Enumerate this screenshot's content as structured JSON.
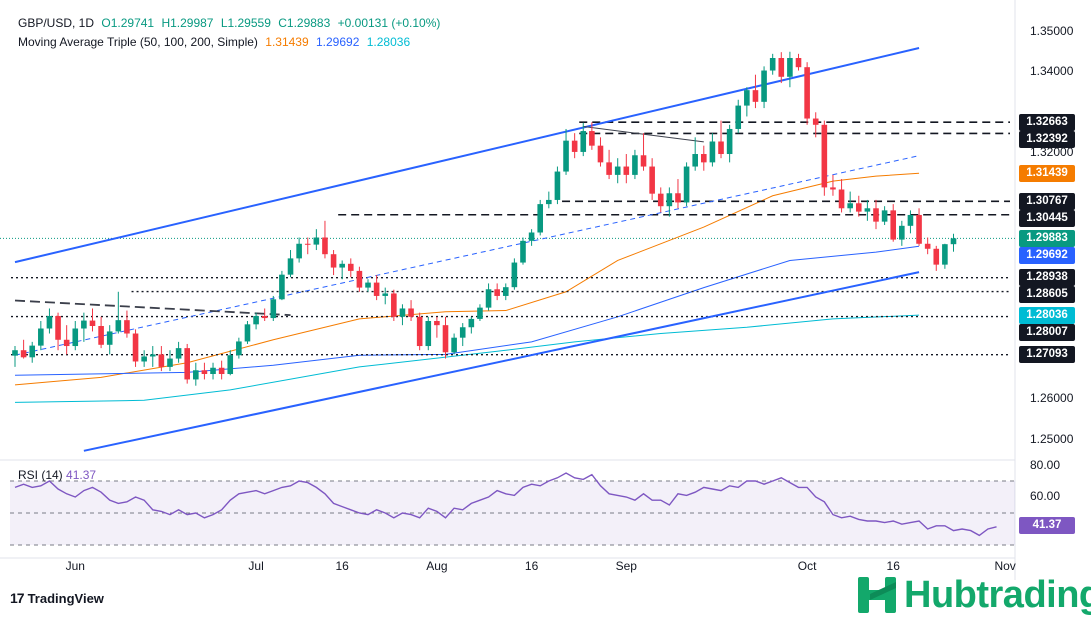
{
  "header": {
    "symbol": "GBP/USD, 1D",
    "open": "O1.29741",
    "high": "H1.29987",
    "low": "L1.29559",
    "close": "C1.29883",
    "change": "+0.00131 (+0.10%)",
    "indicator_name": "Moving Average Triple (50, 100, 200, Simple)",
    "ma50": "1.31439",
    "ma100": "1.29692",
    "ma200": "1.28036"
  },
  "rsi": {
    "name": "RSI (14)",
    "value": "41.37",
    "axis": [
      "80.00",
      "60.00"
    ]
  },
  "price_axis": [
    "1.35000",
    "1.34000",
    "1.32000",
    "1.26000",
    "1.25000"
  ],
  "price_labels": [
    {
      "text": "1.32663",
      "style": "dark",
      "price": 1.32663
    },
    {
      "text": "1.32392",
      "style": "dark",
      "price": 1.32392
    },
    {
      "text": "1.31439",
      "style": "orange",
      "price": 1.31439
    },
    {
      "text": "1.30767",
      "style": "dark",
      "price": 1.30767
    },
    {
      "text": "1.30445",
      "style": "dark",
      "price": 1.30445
    },
    {
      "text": "1.29883",
      "style": "green",
      "price": 1.29883
    },
    {
      "text": "1.29692",
      "style": "blue",
      "price": 1.29692
    },
    {
      "text": "1.28938",
      "style": "dark",
      "price": 1.28938
    },
    {
      "text": "1.28605",
      "style": "dark",
      "price": 1.28605
    },
    {
      "text": "1.28036",
      "style": "teal",
      "price": 1.28036
    },
    {
      "text": "1.28007",
      "style": "dark",
      "price": 1.28007
    },
    {
      "text": "1.27093",
      "style": "dark",
      "price": 1.27093
    }
  ],
  "x_axis": [
    {
      "label": "Jun",
      "bar": 7
    },
    {
      "label": "Jul",
      "bar": 28
    },
    {
      "label": "16",
      "bar": 38
    },
    {
      "label": "Aug",
      "bar": 49
    },
    {
      "label": "16",
      "bar": 60
    },
    {
      "label": "Sep",
      "bar": 71
    },
    {
      "label": "Oct",
      "bar": 92
    },
    {
      "label": "16",
      "bar": 102
    },
    {
      "label": "Nov",
      "bar": 115
    }
  ],
  "branding": {
    "tradingview": "TradingView",
    "broker": "Hubtrading"
  },
  "colors": {
    "up": "#089981",
    "down": "#f23645",
    "ma50": "#f57c00",
    "ma100": "#2962ff",
    "ma200": "#00bcd4",
    "channel": "#2962ff",
    "rsi": "#7e57c2",
    "level": "#131722"
  },
  "chart_data": {
    "type": "candlestick",
    "title": "GBP/USD, 1D",
    "y_range": [
      1.2457,
      1.3535
    ],
    "horizontal_levels": [
      1.32663,
      1.32392,
      1.30767,
      1.30445,
      1.28938,
      1.28605,
      1.28007,
      1.27093
    ],
    "channel_upper": [
      [
        0,
        1.2931
      ],
      [
        105,
        1.3444
      ]
    ],
    "channel_lower": [
      [
        8,
        1.2479
      ],
      [
        105,
        1.2907
      ]
    ],
    "channel_mid_dashed": [
      [
        0,
        1.2708
      ],
      [
        105,
        1.3186
      ]
    ],
    "trend_dashed": [
      [
        0,
        1.2839
      ],
      [
        32,
        1.2804
      ]
    ],
    "sep_trendline": [
      [
        66,
        1.3256
      ],
      [
        80,
        1.3219
      ]
    ],
    "ma50": [
      [
        0,
        1.2637
      ],
      [
        10,
        1.2655
      ],
      [
        20,
        1.269
      ],
      [
        30,
        1.2745
      ],
      [
        40,
        1.2795
      ],
      [
        50,
        1.2812
      ],
      [
        57,
        1.2815
      ],
      [
        64,
        1.286
      ],
      [
        70,
        1.2935
      ],
      [
        80,
        1.3015
      ],
      [
        88,
        1.309
      ],
      [
        95,
        1.3125
      ],
      [
        100,
        1.3137
      ],
      [
        105,
        1.3144
      ]
    ],
    "ma100": [
      [
        0,
        1.266
      ],
      [
        20,
        1.2667
      ],
      [
        30,
        1.2684
      ],
      [
        40,
        1.2708
      ],
      [
        50,
        1.271
      ],
      [
        60,
        1.274
      ],
      [
        70,
        1.28
      ],
      [
        80,
        1.287
      ],
      [
        90,
        1.2935
      ],
      [
        100,
        1.2955
      ],
      [
        105,
        1.2969
      ]
    ],
    "ma200": [
      [
        0,
        1.2595
      ],
      [
        15,
        1.26
      ],
      [
        25,
        1.2625
      ],
      [
        40,
        1.268
      ],
      [
        55,
        1.2715
      ],
      [
        65,
        1.274
      ],
      [
        75,
        1.276
      ],
      [
        85,
        1.2775
      ],
      [
        95,
        1.2795
      ],
      [
        105,
        1.2804
      ]
    ],
    "candles": [
      [
        1.2707,
        1.273,
        1.268,
        1.272
      ],
      [
        1.272,
        1.2745,
        1.27,
        1.2703
      ],
      [
        1.2703,
        1.274,
        1.269,
        1.2731
      ],
      [
        1.2731,
        1.279,
        1.272,
        1.2772
      ],
      [
        1.2772,
        1.282,
        1.276,
        1.2802
      ],
      [
        1.2802,
        1.281,
        1.272,
        1.2745
      ],
      [
        1.2745,
        1.278,
        1.271,
        1.273
      ],
      [
        1.273,
        1.279,
        1.272,
        1.2772
      ],
      [
        1.2772,
        1.281,
        1.274,
        1.2791
      ],
      [
        1.2791,
        1.282,
        1.2765,
        1.2778
      ],
      [
        1.2778,
        1.28,
        1.2725,
        1.2733
      ],
      [
        1.2733,
        1.278,
        1.271,
        1.2765
      ],
      [
        1.2765,
        1.286,
        1.276,
        1.2792
      ],
      [
        1.2792,
        1.2815,
        1.275,
        1.276
      ],
      [
        1.276,
        1.277,
        1.268,
        1.2693
      ],
      [
        1.2693,
        1.272,
        1.268,
        1.2705
      ],
      [
        1.2705,
        1.273,
        1.268,
        1.271
      ],
      [
        1.271,
        1.273,
        1.267,
        1.268
      ],
      [
        1.268,
        1.272,
        1.267,
        1.27
      ],
      [
        1.27,
        1.274,
        1.269,
        1.2725
      ],
      [
        1.2725,
        1.2735,
        1.264,
        1.265
      ],
      [
        1.265,
        1.269,
        1.2635,
        1.2672
      ],
      [
        1.2672,
        1.269,
        1.265,
        1.2663
      ],
      [
        1.2663,
        1.269,
        1.265,
        1.2678
      ],
      [
        1.2678,
        1.2695,
        1.265,
        1.2663
      ],
      [
        1.2663,
        1.272,
        1.266,
        1.2708
      ],
      [
        1.2708,
        1.275,
        1.27,
        1.2741
      ],
      [
        1.2741,
        1.279,
        1.2735,
        1.2782
      ],
      [
        1.2782,
        1.281,
        1.277,
        1.2802
      ],
      [
        1.2802,
        1.282,
        1.279,
        1.2797
      ],
      [
        1.2797,
        1.285,
        1.279,
        1.2842
      ],
      [
        1.2842,
        1.291,
        1.284,
        1.2901
      ],
      [
        1.2901,
        1.296,
        1.2895,
        1.294
      ],
      [
        1.294,
        1.299,
        1.293,
        1.2975
      ],
      [
        1.2975,
        1.299,
        1.295,
        1.2973
      ],
      [
        1.2973,
        1.301,
        1.296,
        1.299
      ],
      [
        1.299,
        1.303,
        1.294,
        1.295
      ],
      [
        1.295,
        1.296,
        1.29,
        1.2918
      ],
      [
        1.2918,
        1.2935,
        1.289,
        1.2927
      ],
      [
        1.2927,
        1.294,
        1.2895,
        1.291
      ],
      [
        1.291,
        1.292,
        1.286,
        1.287
      ],
      [
        1.287,
        1.289,
        1.286,
        1.2882
      ],
      [
        1.2882,
        1.29,
        1.284,
        1.285
      ],
      [
        1.285,
        1.287,
        1.283,
        1.2856
      ],
      [
        1.2856,
        1.2865,
        1.279,
        1.28
      ],
      [
        1.28,
        1.283,
        1.278,
        1.282
      ],
      [
        1.282,
        1.284,
        1.279,
        1.28
      ],
      [
        1.28,
        1.281,
        1.272,
        1.273
      ],
      [
        1.273,
        1.28,
        1.272,
        1.279
      ],
      [
        1.279,
        1.28,
        1.275,
        1.278
      ],
      [
        1.278,
        1.28,
        1.27,
        1.2715
      ],
      [
        1.2715,
        1.276,
        1.271,
        1.275
      ],
      [
        1.275,
        1.2785,
        1.273,
        1.2775
      ],
      [
        1.2775,
        1.28,
        1.276,
        1.2795
      ],
      [
        1.2795,
        1.283,
        1.279,
        1.2822
      ],
      [
        1.2822,
        1.288,
        1.2815,
        1.2866
      ],
      [
        1.2866,
        1.288,
        1.284,
        1.285
      ],
      [
        1.285,
        1.288,
        1.284,
        1.2871
      ],
      [
        1.2871,
        1.294,
        1.2865,
        1.293
      ],
      [
        1.293,
        1.299,
        1.2925,
        1.2982
      ],
      [
        1.2982,
        1.301,
        1.297,
        1.3002
      ],
      [
        1.3002,
        1.308,
        1.2995,
        1.307
      ],
      [
        1.307,
        1.31,
        1.306,
        1.308
      ],
      [
        1.308,
        1.316,
        1.307,
        1.3148
      ],
      [
        1.3148,
        1.325,
        1.314,
        1.3222
      ],
      [
        1.3222,
        1.324,
        1.318,
        1.3195
      ],
      [
        1.3195,
        1.3265,
        1.3185,
        1.3245
      ],
      [
        1.3245,
        1.3266,
        1.32,
        1.321
      ],
      [
        1.321,
        1.323,
        1.316,
        1.317
      ],
      [
        1.317,
        1.32,
        1.313,
        1.314
      ],
      [
        1.314,
        1.318,
        1.312,
        1.316
      ],
      [
        1.316,
        1.319,
        1.312,
        1.314
      ],
      [
        1.314,
        1.32,
        1.313,
        1.3187
      ],
      [
        1.3187,
        1.324,
        1.315,
        1.316
      ],
      [
        1.316,
        1.318,
        1.308,
        1.3095
      ],
      [
        1.3095,
        1.311,
        1.305,
        1.3065
      ],
      [
        1.3065,
        1.311,
        1.304,
        1.3096
      ],
      [
        1.3096,
        1.313,
        1.306,
        1.3074
      ],
      [
        1.3074,
        1.317,
        1.3065,
        1.316
      ],
      [
        1.316,
        1.323,
        1.315,
        1.319
      ],
      [
        1.319,
        1.321,
        1.315,
        1.317
      ],
      [
        1.317,
        1.324,
        1.316,
        1.322
      ],
      [
        1.322,
        1.327,
        1.318,
        1.319
      ],
      [
        1.319,
        1.326,
        1.317,
        1.325
      ],
      [
        1.325,
        1.332,
        1.324,
        1.3306
      ],
      [
        1.3306,
        1.335,
        1.328,
        1.3343
      ],
      [
        1.3343,
        1.338,
        1.33,
        1.3315
      ],
      [
        1.3315,
        1.34,
        1.33,
        1.339
      ],
      [
        1.339,
        1.343,
        1.338,
        1.342
      ],
      [
        1.342,
        1.3434,
        1.336,
        1.3375
      ],
      [
        1.3375,
        1.3435,
        1.335,
        1.342
      ],
      [
        1.342,
        1.343,
        1.339,
        1.3398
      ],
      [
        1.3398,
        1.341,
        1.326,
        1.3275
      ],
      [
        1.3275,
        1.329,
        1.323,
        1.326
      ],
      [
        1.326,
        1.327,
        1.309,
        1.311
      ],
      [
        1.311,
        1.314,
        1.309,
        1.3105
      ],
      [
        1.3105,
        1.313,
        1.305,
        1.306
      ],
      [
        1.306,
        1.31,
        1.305,
        1.3072
      ],
      [
        1.3072,
        1.309,
        1.304,
        1.3052
      ],
      [
        1.3052,
        1.308,
        1.303,
        1.306
      ],
      [
        1.306,
        1.308,
        1.301,
        1.3028
      ],
      [
        1.3028,
        1.3065,
        1.302,
        1.3055
      ],
      [
        1.3055,
        1.307,
        1.298,
        1.2985
      ],
      [
        1.2985,
        1.303,
        1.297,
        1.3018
      ],
      [
        1.3018,
        1.3055,
        1.3,
        1.3044
      ],
      [
        1.3044,
        1.306,
        1.297,
        1.2975
      ],
      [
        1.2975,
        1.299,
        1.295,
        1.2963
      ],
      [
        1.2963,
        1.297,
        1.291,
        1.2925
      ],
      [
        1.2925,
        1.2975,
        1.2915,
        1.2974
      ],
      [
        1.2974,
        1.2999,
        1.2956,
        1.2988
      ]
    ],
    "rsi_series": [
      66,
      68,
      66,
      67,
      70,
      65,
      62,
      60,
      64,
      66,
      63,
      58,
      56,
      57,
      60,
      58,
      52,
      51,
      49,
      52,
      49,
      50,
      47,
      49,
      52,
      58,
      62,
      63,
      64,
      62,
      64,
      66,
      67,
      70,
      69,
      66,
      62,
      56,
      54,
      52,
      50,
      49,
      52,
      50,
      47,
      50,
      49,
      47,
      53,
      51,
      47,
      53,
      52,
      56,
      58,
      60,
      64,
      62,
      61,
      66,
      68,
      67,
      70,
      72,
      75,
      72,
      71,
      74,
      67,
      62,
      61,
      60,
      58,
      62,
      58,
      58,
      55,
      62,
      61,
      63,
      66,
      65,
      64,
      67,
      66,
      70,
      70,
      68,
      70,
      72,
      69,
      66,
      66,
      60,
      57,
      49,
      47,
      48,
      46,
      45,
      45,
      44,
      45,
      43,
      44,
      45,
      40,
      42,
      42,
      39,
      40,
      39,
      36,
      40,
      41.37
    ]
  }
}
